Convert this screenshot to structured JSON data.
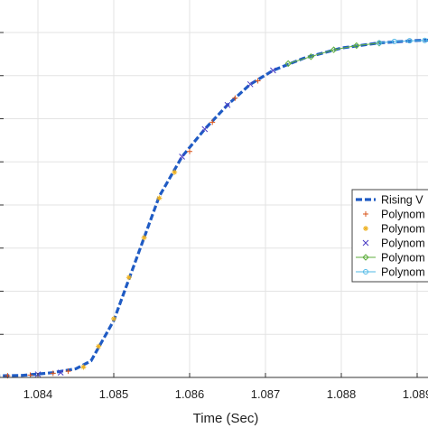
{
  "chart_data": {
    "type": "line",
    "xlabel": "Time (Sec)",
    "ylabel": "",
    "xlim": [
      1.0833,
      1.0892
    ],
    "ylim": [
      0,
      1
    ],
    "x_ticks": [
      "1.084",
      "1.085",
      "1.086",
      "1.087",
      "1.088",
      "1.089"
    ],
    "grid": true,
    "legend_position": "right",
    "series": [
      {
        "name": "Rising V",
        "color": "#1f5bc4",
        "style": "dashed-thick",
        "x": [
          1.0833,
          1.0838,
          1.0842,
          1.0845,
          1.0847,
          1.085,
          1.0853,
          1.0856,
          1.0859,
          1.0862,
          1.0865,
          1.0868,
          1.0871,
          1.0875,
          1.088,
          1.0885,
          1.089,
          1.0892
        ],
        "y": [
          0.004,
          0.006,
          0.014,
          0.025,
          0.048,
          0.165,
          0.345,
          0.525,
          0.64,
          0.72,
          0.79,
          0.85,
          0.89,
          0.925,
          0.955,
          0.97,
          0.977,
          0.978
        ]
      },
      {
        "name": "Polynom",
        "color": "#d9541a",
        "marker": "plus",
        "x": [
          1.0833,
          1.0836,
          1.0839,
          1.0842,
          1.0844,
          1.086,
          1.0863,
          1.0866,
          1.0869
        ],
        "y": [
          0.004,
          0.005,
          0.007,
          0.012,
          0.018,
          0.655,
          0.74,
          0.81,
          0.86
        ]
      },
      {
        "name": "Polynom",
        "color": "#edb120",
        "marker": "star",
        "x": [
          1.0846,
          1.0848,
          1.085,
          1.0852,
          1.0854,
          1.0856,
          1.0858
        ],
        "y": [
          0.03,
          0.09,
          0.17,
          0.29,
          0.405,
          0.52,
          0.595
        ]
      },
      {
        "name": "Polynom",
        "color": "#4a3cc4",
        "marker": "x",
        "x": [
          1.084,
          1.0843,
          1.0859,
          1.0862,
          1.0865,
          1.0868,
          1.0871
        ],
        "y": [
          0.009,
          0.014,
          0.64,
          0.72,
          0.79,
          0.85,
          0.89
        ]
      },
      {
        "name": "Polynom",
        "color": "#5fae3e",
        "marker": "diamond",
        "x": [
          1.0873,
          1.0876,
          1.0879,
          1.0882,
          1.0885
        ],
        "y": [
          0.91,
          0.93,
          0.95,
          0.962,
          0.969
        ]
      },
      {
        "name": "Polynom",
        "color": "#4fb8e6",
        "marker": "circle",
        "x": [
          1.0885,
          1.0887,
          1.0889,
          1.0891,
          1.0892
        ],
        "y": [
          0.97,
          0.974,
          0.976,
          0.977,
          0.978
        ]
      }
    ]
  }
}
